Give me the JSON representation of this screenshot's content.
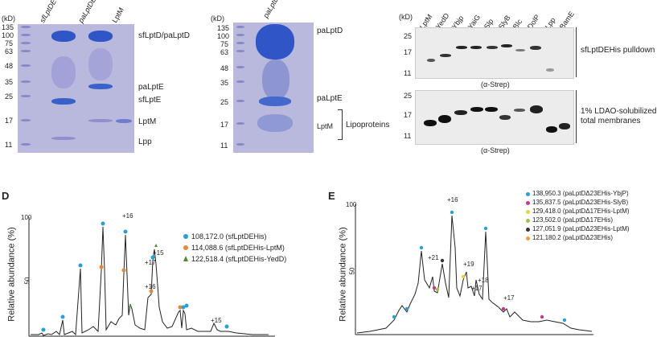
{
  "panelA": {
    "kd": "(kD)",
    "markers": [
      "135",
      "100",
      "75",
      "63",
      "48",
      "35",
      "25",
      "17",
      "11"
    ],
    "lanes": [
      "sfLptDE",
      "paLptDE",
      "LptM"
    ],
    "labels": [
      "sfLptD/paLptD",
      "paLptE",
      "sfLptE",
      "LptM",
      "Lpp"
    ]
  },
  "panelB": {
    "kd": "(kD)",
    "markers": [
      "135",
      "100",
      "75",
      "63",
      "48",
      "35",
      "25",
      "17",
      "11"
    ],
    "lanes": [
      "paLptDE"
    ],
    "labels": [
      "paLptD",
      "paLptE",
      "LptM",
      "Lipoproteins"
    ]
  },
  "panelC": {
    "kd": "(kD)",
    "lanes": [
      "LptM",
      "YedD",
      "Ybjp",
      "YaiG",
      "Slp",
      "SlyB",
      "Blc",
      "DolP",
      "Lpp",
      "BamE"
    ],
    "top_markers": [
      "25",
      "17",
      "11"
    ],
    "bottom_markers": [
      "25",
      "17",
      "11"
    ],
    "top_label": "sfLptDEHis pulldown",
    "bottom_label_1": "1% LDAO-solubilized",
    "bottom_label_2": "total membranes",
    "antibody": "(α-Strep)"
  },
  "panelD": {
    "letter": "D",
    "ylabel": "Relative abundance (%)",
    "y100": "100",
    "y50": "50",
    "legend": [
      {
        "text": "108,172.0 (sfLptDEHis)",
        "color": "#2a9fd6",
        "shape": "circle"
      },
      {
        "text": "114,088.6 (sfLptDEHis-LptM)",
        "color": "#e0893a",
        "shape": "circle"
      },
      {
        "text": "122,518.4 (sfLptDEHis-YedD)",
        "color": "#4e8f2c",
        "shape": "triangle"
      }
    ],
    "annotations": [
      "+16",
      "+15",
      "+17",
      "+16",
      "+15"
    ]
  },
  "panelE": {
    "letter": "E",
    "ylabel": "Relative abundance (%)",
    "y100": "100",
    "y50": "50",
    "legend": [
      {
        "text": "138,950.3 (paLptDΔ23EHis-YbjP)",
        "color": "#2a9fd6"
      },
      {
        "text": "135,837.5 (paLptDΔ23EHis-SlyB)",
        "color": "#c0398c"
      },
      {
        "text": "129,418.0 (paLptDΔ17EHis-LptM)",
        "color": "#e8d23a"
      },
      {
        "text": "123,502.0 (paLptDΔ17EHis)",
        "color": "#9bc24a"
      },
      {
        "text": "127,051.9 (paLptDΔ23EHis-LptM)",
        "color": "#333333"
      },
      {
        "text": "121,180.2 (paLptDΔ23EHis)",
        "color": "#f2a13a"
      }
    ],
    "annotations": [
      "+16",
      "+21",
      "+19",
      "+18",
      "+17",
      "+17"
    ]
  }
}
